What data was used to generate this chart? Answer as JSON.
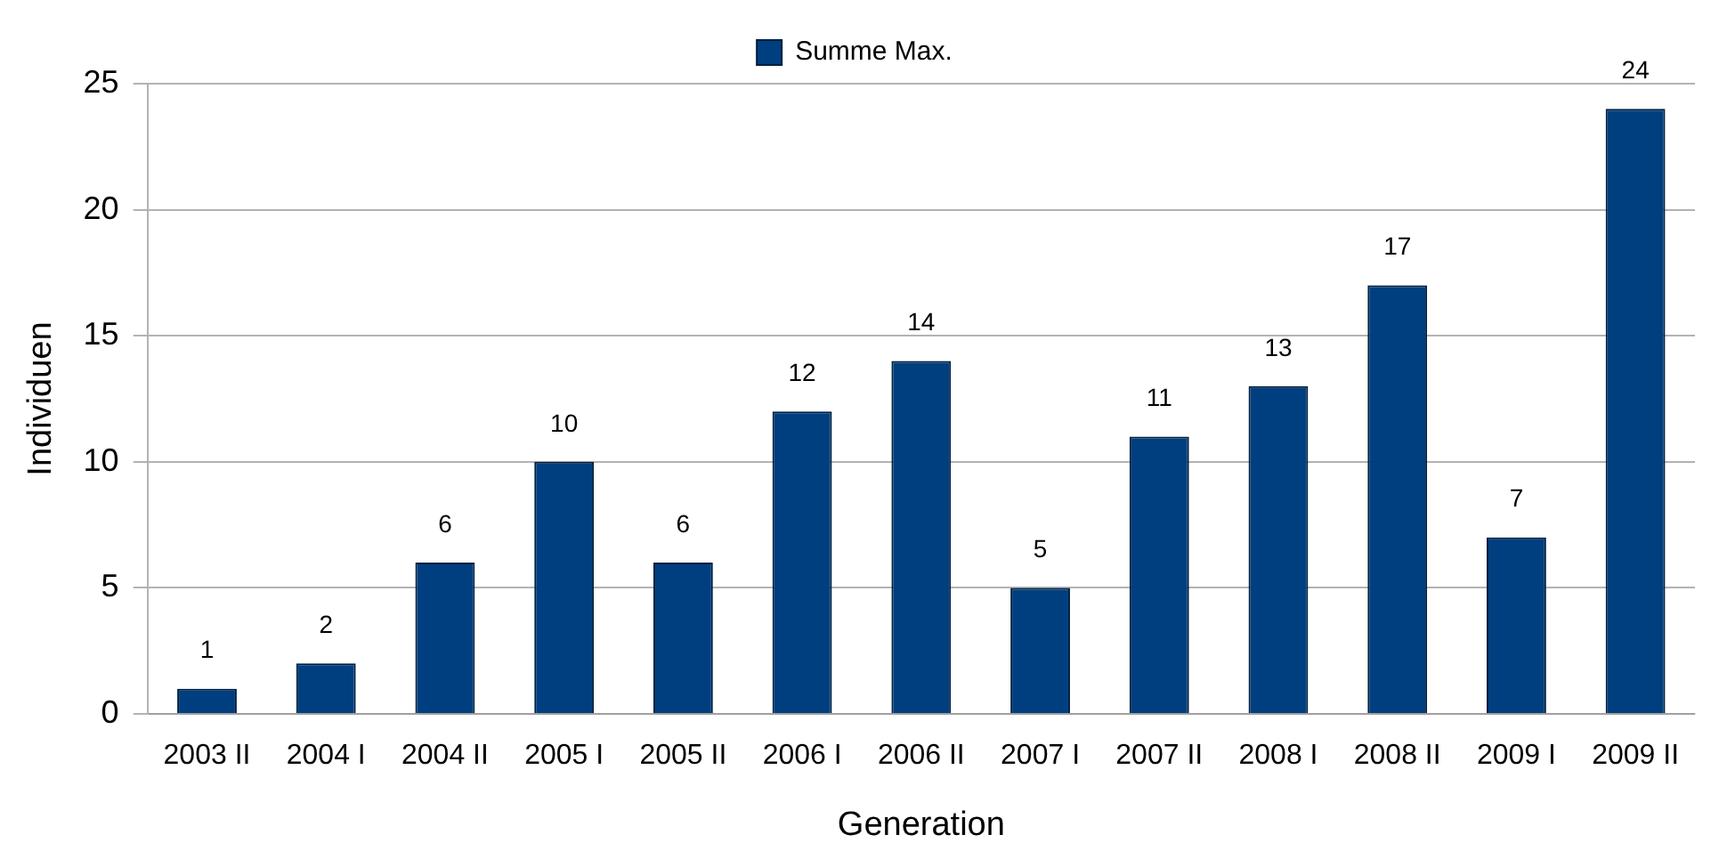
{
  "chart_data": {
    "type": "bar",
    "xlabel": "Generation",
    "ylabel": "Individuen",
    "categories": [
      "2003 II",
      "2004 I",
      "2004 II",
      "2005 I",
      "2005 II",
      "2006 I",
      "2006 II",
      "2007 I",
      "2007 II",
      "2008 I",
      "2008 II",
      "2009 I",
      "2009 II"
    ],
    "series": [
      {
        "name": "Summe Max.",
        "color": "#003f7f",
        "values": [
          1,
          2,
          6,
          10,
          6,
          12,
          14,
          5,
          11,
          13,
          17,
          7,
          24
        ]
      }
    ],
    "ylim": [
      0,
      25
    ],
    "yticks": [
      0,
      5,
      10,
      15,
      20,
      25
    ],
    "grid": "y",
    "legend": "top",
    "data_labels": true
  }
}
